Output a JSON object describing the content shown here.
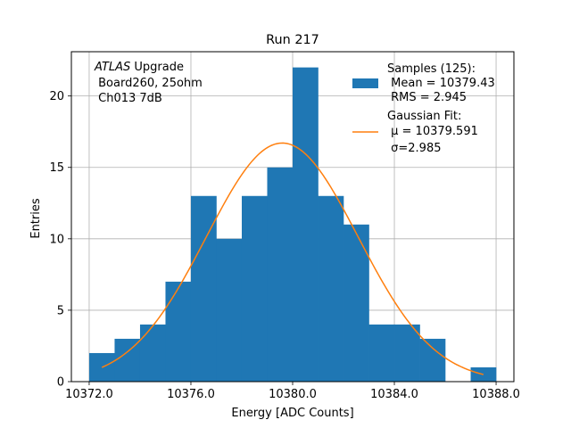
{
  "chart_data": {
    "type": "bar",
    "title": "Run 217",
    "xlabel": "Energy [ADC Counts]",
    "ylabel": "Entries",
    "xlim": [
      10371.3,
      10388.7
    ],
    "ylim": [
      0,
      23.1
    ],
    "x_ticks": [
      10372.0,
      10376.0,
      10380.0,
      10384.0,
      10388.0
    ],
    "x_tick_labels": [
      "10372.0",
      "10376.0",
      "10380.0",
      "10384.0",
      "10388.0"
    ],
    "y_ticks": [
      0,
      5,
      10,
      15,
      20
    ],
    "y_tick_labels": [
      "0",
      "5",
      "10",
      "15",
      "20"
    ],
    "grid": true,
    "bins": {
      "edges": [
        10372,
        10373,
        10374,
        10375,
        10376,
        10377,
        10378,
        10379,
        10380,
        10381,
        10382,
        10383,
        10384,
        10385,
        10386,
        10387,
        10388
      ],
      "counts": [
        2,
        3,
        4,
        7,
        13,
        10,
        13,
        15,
        22,
        13,
        11,
        4,
        4,
        3,
        0,
        1
      ]
    },
    "fit": {
      "mu": 10379.591,
      "sigma": 2.985,
      "n": 125,
      "bin_width": 1,
      "x_range": [
        10372.5,
        10387.5
      ]
    },
    "annotation": {
      "italic": "ATLAS",
      "line1_rest": " Upgrade",
      "line2": " Board260, 25ohm",
      "line3": " Ch013 7dB"
    },
    "legend": {
      "position": "upper right",
      "hist_lines": [
        "Samples (125):",
        " Mean = 10379.43",
        " RMS = 2.945"
      ],
      "fit_lines": [
        "Gaussian Fit:",
        " μ = 10379.591",
        " σ=2.985"
      ]
    },
    "colors": {
      "bars": "#1f77b4",
      "fit": "#ff7f0e",
      "grid": "#b0b0b0"
    }
  }
}
